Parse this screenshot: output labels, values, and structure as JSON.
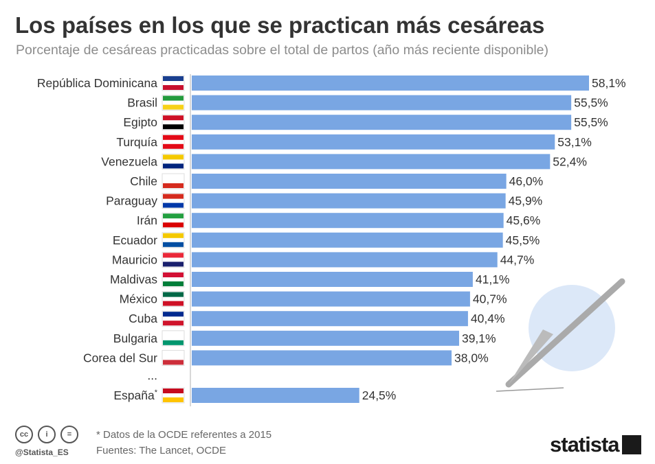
{
  "header": {
    "title": "Los países en los que se practican más cesáreas",
    "subtitle": "Porcentaje de cesáreas practicadas sobre el total de partos (año más reciente disponible)"
  },
  "chart_data": {
    "type": "bar",
    "orientation": "horizontal",
    "title": "Los países en los que se practican más cesáreas",
    "subtitle": "Porcentaje de cesáreas practicadas sobre el total de partos (año más reciente disponible)",
    "categories": [
      "República Dominicana",
      "Brasil",
      "Egipto",
      "Turquía",
      "Venezuela",
      "Chile",
      "Paraguay",
      "Irán",
      "Ecuador",
      "Mauricio",
      "Maldivas",
      "México",
      "Cuba",
      "Bulgaria",
      "Corea del Sur",
      "España"
    ],
    "values": [
      58.1,
      55.5,
      55.5,
      53.1,
      52.4,
      46.0,
      45.9,
      45.6,
      45.5,
      44.7,
      41.1,
      40.7,
      40.4,
      39.1,
      38.0,
      24.5
    ],
    "value_labels": [
      "58,1%",
      "55,5%",
      "55,5%",
      "53,1%",
      "52,4%",
      "46,0%",
      "45,9%",
      "45,6%",
      "45,5%",
      "44,7%",
      "41,1%",
      "40,7%",
      "40,4%",
      "39,1%",
      "38,0%",
      "24,5%"
    ],
    "gap_label": "...",
    "footnote_marker": "*",
    "footnote_category": "España",
    "xlim": [
      0,
      60
    ],
    "bar_color": "#79a6e3",
    "grid": false
  },
  "footer": {
    "note": "* Datos de la OCDE referentes a 2015",
    "sources": "Fuentes: The Lancet, OCDE",
    "handle": "@Statista_ES",
    "brand": "statista",
    "license_icons": [
      "cc-icon",
      "by-icon",
      "nd-icon"
    ],
    "license_glyphs": [
      "cc",
      "i",
      "="
    ]
  },
  "decoration": {
    "illustration": "scalpel-icon",
    "circle_color": "#dce8f8",
    "blade_color": "#bbbbbb"
  }
}
